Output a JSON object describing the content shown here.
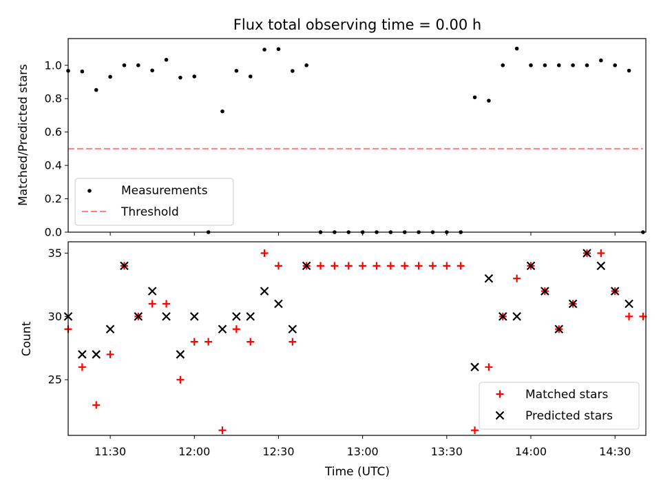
{
  "chart_data": {
    "type": "scatter",
    "title": "Flux total observing time = 0.00 h",
    "xlabel": "Time (UTC)",
    "xlim": [
      "11:15",
      "14:41"
    ],
    "x_ticks": [
      "11:30",
      "12:00",
      "12:30",
      "13:00",
      "13:30",
      "14:00",
      "14:30"
    ],
    "time_offset_min": 0,
    "panels": [
      {
        "name": "ratio",
        "ylabel": "Matched/Predicted stars",
        "ylim": [
          0,
          1.16
        ],
        "y_ticks": [
          "0.0",
          "0.2",
          "0.4",
          "0.6",
          "0.8",
          "1.0"
        ],
        "legend_position": "lower-left",
        "series": [
          {
            "name": "Measurements",
            "marker": "dot",
            "color": "#000000",
            "points": [
              [
                "11:15",
                0.967
              ],
              [
                "11:20",
                0.963
              ],
              [
                "11:25",
                0.852
              ],
              [
                "11:30",
                0.931
              ],
              [
                "11:35",
                1.0
              ],
              [
                "11:40",
                1.0
              ],
              [
                "11:45",
                0.969
              ],
              [
                "11:50",
                1.033
              ],
              [
                "11:55",
                0.926
              ],
              [
                "12:00",
                0.933
              ],
              [
                "12:05",
                0.0
              ],
              [
                "12:10",
                0.724
              ],
              [
                "12:15",
                0.967
              ],
              [
                "12:20",
                0.933
              ],
              [
                "12:25",
                1.094
              ],
              [
                "12:30",
                1.097
              ],
              [
                "12:35",
                0.966
              ],
              [
                "12:40",
                1.0
              ],
              [
                "12:45",
                0.0
              ],
              [
                "12:50",
                0.0
              ],
              [
                "12:55",
                0.0
              ],
              [
                "13:00",
                0.0
              ],
              [
                "13:05",
                0.0
              ],
              [
                "13:10",
                0.0
              ],
              [
                "13:15",
                0.0
              ],
              [
                "13:20",
                0.0
              ],
              [
                "13:25",
                0.0
              ],
              [
                "13:30",
                0.0
              ],
              [
                "13:35",
                0.0
              ],
              [
                "13:40",
                0.808
              ],
              [
                "13:45",
                0.788
              ],
              [
                "13:50",
                1.0
              ],
              [
                "13:55",
                1.1
              ],
              [
                "14:00",
                1.0
              ],
              [
                "14:05",
                1.0
              ],
              [
                "14:10",
                1.0
              ],
              [
                "14:15",
                1.0
              ],
              [
                "14:20",
                1.0
              ],
              [
                "14:25",
                1.029
              ],
              [
                "14:30",
                1.0
              ],
              [
                "14:35",
                0.968
              ],
              [
                "14:40",
                0.0
              ]
            ]
          },
          {
            "name": "Threshold",
            "marker": "dashed-line",
            "color": "#ff7f7f",
            "points": [
              [
                "11:15",
                0.5
              ],
              [
                "14:40",
                0.5
              ]
            ]
          }
        ]
      },
      {
        "name": "counts",
        "ylabel": "Count",
        "ylim": [
          20.6,
          35.9
        ],
        "y_ticks": [
          "25",
          "30",
          "35"
        ],
        "legend_position": "lower-right",
        "series": [
          {
            "name": "Matched stars",
            "marker": "plus",
            "color": "#ff0000",
            "points": [
              [
                "11:15",
                29
              ],
              [
                "11:20",
                26
              ],
              [
                "11:25",
                23
              ],
              [
                "11:30",
                27
              ],
              [
                "11:35",
                34
              ],
              [
                "11:40",
                30
              ],
              [
                "11:45",
                31
              ],
              [
                "11:50",
                31
              ],
              [
                "11:55",
                25
              ],
              [
                "12:00",
                28
              ],
              [
                "12:05",
                28
              ],
              [
                "12:10",
                21
              ],
              [
                "12:15",
                29
              ],
              [
                "12:20",
                28
              ],
              [
                "12:25",
                35
              ],
              [
                "12:30",
                34
              ],
              [
                "12:35",
                28
              ],
              [
                "12:40",
                34
              ],
              [
                "12:45",
                34
              ],
              [
                "12:50",
                34
              ],
              [
                "12:55",
                34
              ],
              [
                "13:00",
                34
              ],
              [
                "13:05",
                34
              ],
              [
                "13:10",
                34
              ],
              [
                "13:15",
                34
              ],
              [
                "13:20",
                34
              ],
              [
                "13:25",
                34
              ],
              [
                "13:30",
                34
              ],
              [
                "13:35",
                34
              ],
              [
                "13:40",
                21
              ],
              [
                "13:45",
                26
              ],
              [
                "13:50",
                30
              ],
              [
                "13:55",
                33
              ],
              [
                "14:00",
                34
              ],
              [
                "14:05",
                32
              ],
              [
                "14:10",
                29
              ],
              [
                "14:15",
                31
              ],
              [
                "14:20",
                35
              ],
              [
                "14:25",
                35
              ],
              [
                "14:30",
                32
              ],
              [
                "14:35",
                30
              ],
              [
                "14:40",
                30
              ]
            ]
          },
          {
            "name": "Predicted stars",
            "marker": "x",
            "color": "#000000",
            "points": [
              [
                "11:15",
                30
              ],
              [
                "11:20",
                27
              ],
              [
                "11:25",
                27
              ],
              [
                "11:30",
                29
              ],
              [
                "11:35",
                34
              ],
              [
                "11:40",
                30
              ],
              [
                "11:45",
                32
              ],
              [
                "11:50",
                30
              ],
              [
                "11:55",
                27
              ],
              [
                "12:00",
                30
              ],
              [
                "12:10",
                29
              ],
              [
                "12:15",
                30
              ],
              [
                "12:20",
                30
              ],
              [
                "12:25",
                32
              ],
              [
                "12:30",
                31
              ],
              [
                "12:35",
                29
              ],
              [
                "12:40",
                34
              ],
              [
                "13:40",
                26
              ],
              [
                "13:45",
                33
              ],
              [
                "13:50",
                30
              ],
              [
                "13:55",
                30
              ],
              [
                "14:00",
                34
              ],
              [
                "14:05",
                32
              ],
              [
                "14:10",
                29
              ],
              [
                "14:15",
                31
              ],
              [
                "14:20",
                35
              ],
              [
                "14:25",
                34
              ],
              [
                "14:30",
                32
              ],
              [
                "14:35",
                31
              ]
            ]
          }
        ]
      }
    ]
  }
}
